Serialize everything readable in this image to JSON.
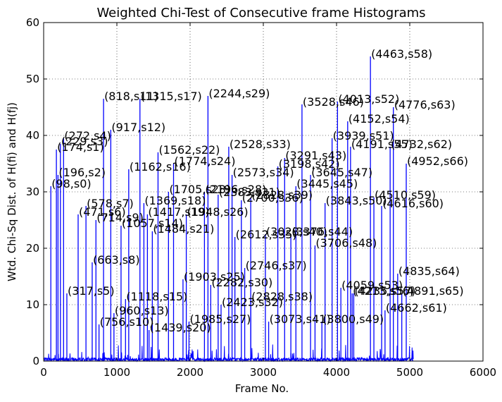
{
  "chart_data": {
    "type": "line",
    "title": "Weighted Chi-Test of Consecutive frame Histograms",
    "xlabel": "Frame No.",
    "ylabel": "Wtd. Chi-Sq Dist. of H(fi) and H(fj)",
    "xlim": [
      0,
      6000
    ],
    "ylim": [
      0,
      60
    ],
    "xticks": [
      0,
      1000,
      2000,
      3000,
      4000,
      5000,
      6000
    ],
    "yticks": [
      0,
      10,
      20,
      30,
      40,
      50,
      60
    ],
    "grid": true,
    "line_color": "#0000ff",
    "baseline_frames": 5050,
    "peaks": [
      {
        "x": 98,
        "y": 31,
        "label": "(98,s0)"
      },
      {
        "x": 174,
        "y": 37.5,
        "label": "(174,s1)"
      },
      {
        "x": 196,
        "y": 33,
        "label": "(196,s2)"
      },
      {
        "x": 229,
        "y": 38.5,
        "label": "(229,s3)"
      },
      {
        "x": 272,
        "y": 39.5,
        "label": "(272,s4)"
      },
      {
        "x": 317,
        "y": 12,
        "label": "(317,s5)"
      },
      {
        "x": 471,
        "y": 26,
        "label": "(471,s6)"
      },
      {
        "x": 578,
        "y": 27.5,
        "label": "(578,s7)"
      },
      {
        "x": 663,
        "y": 17.5,
        "label": "(663,s8)"
      },
      {
        "x": 714,
        "y": 25,
        "label": "(714,s9)"
      },
      {
        "x": 756,
        "y": 6.5,
        "label": "(756,s10)"
      },
      {
        "x": 818,
        "y": 46.5,
        "label": "(818,s11)"
      },
      {
        "x": 917,
        "y": 41,
        "label": "(917,s12)"
      },
      {
        "x": 960,
        "y": 8.5,
        "label": "(960,s13)"
      },
      {
        "x": 1057,
        "y": 24,
        "label": "(1057,s14)"
      },
      {
        "x": 1118,
        "y": 11,
        "label": "(1118,s15)"
      },
      {
        "x": 1162,
        "y": 34,
        "label": "(1162,s16)"
      },
      {
        "x": 1315,
        "y": 46.5,
        "label": "(1315,s17)"
      },
      {
        "x": 1369,
        "y": 28,
        "label": "(1369,s18)"
      },
      {
        "x": 1417,
        "y": 26,
        "label": "(1417,s19)"
      },
      {
        "x": 1439,
        "y": 5.5,
        "label": "(1439,s20)"
      },
      {
        "x": 1484,
        "y": 23,
        "label": "(1484,s21)"
      },
      {
        "x": 1562,
        "y": 37,
        "label": "(1562,s22)"
      },
      {
        "x": 1705,
        "y": 30,
        "label": "(1705,s23)"
      },
      {
        "x": 1774,
        "y": 35,
        "label": "(1774,s24)"
      },
      {
        "x": 1903,
        "y": 14.5,
        "label": "(1903,s25)"
      },
      {
        "x": 1948,
        "y": 26,
        "label": "(1948,s26)"
      },
      {
        "x": 1985,
        "y": 7,
        "label": "(1985,s27)"
      },
      {
        "x": 2196,
        "y": 30,
        "label": "(2196,s28)"
      },
      {
        "x": 2244,
        "y": 47,
        "label": "(2244,s29)"
      },
      {
        "x": 2282,
        "y": 13.5,
        "label": "(2282,s30)"
      },
      {
        "x": 2383,
        "y": 29.5,
        "label": "(2383,s31)"
      },
      {
        "x": 2423,
        "y": 10,
        "label": "(2423,s32)"
      },
      {
        "x": 2528,
        "y": 38,
        "label": "(2528,s33)"
      },
      {
        "x": 2573,
        "y": 33,
        "label": "(2573,s34)"
      },
      {
        "x": 2612,
        "y": 22,
        "label": "(2612,s35)"
      },
      {
        "x": 2700,
        "y": 28.5,
        "label": "(2700,s36)"
      },
      {
        "x": 2746,
        "y": 16.5,
        "label": "(2746,s37)"
      },
      {
        "x": 2828,
        "y": 11,
        "label": "(2828,s38)"
      },
      {
        "x": 2828,
        "y": 29,
        "label": "(2828,s39)"
      },
      {
        "x": 3028,
        "y": 22.5,
        "label": "(3028,s40)"
      },
      {
        "x": 3073,
        "y": 7,
        "label": "(3073,s41)"
      },
      {
        "x": 3198,
        "y": 34.5,
        "label": "(3198,s42)"
      },
      {
        "x": 3291,
        "y": 36,
        "label": "(3291,s43)"
      },
      {
        "x": 3376,
        "y": 22.5,
        "label": "(3376,s44)"
      },
      {
        "x": 3445,
        "y": 31,
        "label": "(3445,s45)"
      },
      {
        "x": 3528,
        "y": 45.5,
        "label": "(3528,s46)"
      },
      {
        "x": 3645,
        "y": 33,
        "label": "(3645,s47)"
      },
      {
        "x": 3706,
        "y": 20.5,
        "label": "(3706,s48)"
      },
      {
        "x": 3800,
        "y": 7,
        "label": "(3800,s49)"
      },
      {
        "x": 3843,
        "y": 28,
        "label": "(3843,s50)"
      },
      {
        "x": 3939,
        "y": 39.5,
        "label": "(3939,s51)"
      },
      {
        "x": 4013,
        "y": 46,
        "label": "(4013,s52)"
      },
      {
        "x": 4059,
        "y": 13,
        "label": "(4059,s53)"
      },
      {
        "x": 4152,
        "y": 42.5,
        "label": "(4152,s54)"
      },
      {
        "x": 4191,
        "y": 38,
        "label": "(4191,s55)"
      },
      {
        "x": 4213,
        "y": 12,
        "label": "(4213,s56)"
      },
      {
        "x": 4235,
        "y": 12,
        "label": "(4235,s57)"
      },
      {
        "x": 4463,
        "y": 54,
        "label": "(4463,s58)"
      },
      {
        "x": 4510,
        "y": 29,
        "label": "(4510,s59)"
      },
      {
        "x": 4616,
        "y": 27.5,
        "label": "(4616,s60)"
      },
      {
        "x": 4662,
        "y": 9,
        "label": "(4662,s61)"
      },
      {
        "x": 4732,
        "y": 38,
        "label": "(4732,s62)"
      },
      {
        "x": 4776,
        "y": 45,
        "label": "(4776,s63)"
      },
      {
        "x": 4835,
        "y": 15.5,
        "label": "(4835,s64)"
      },
      {
        "x": 4891,
        "y": 12,
        "label": "(4891,s65)"
      },
      {
        "x": 4952,
        "y": 35,
        "label": "(4952,s66)"
      }
    ]
  }
}
